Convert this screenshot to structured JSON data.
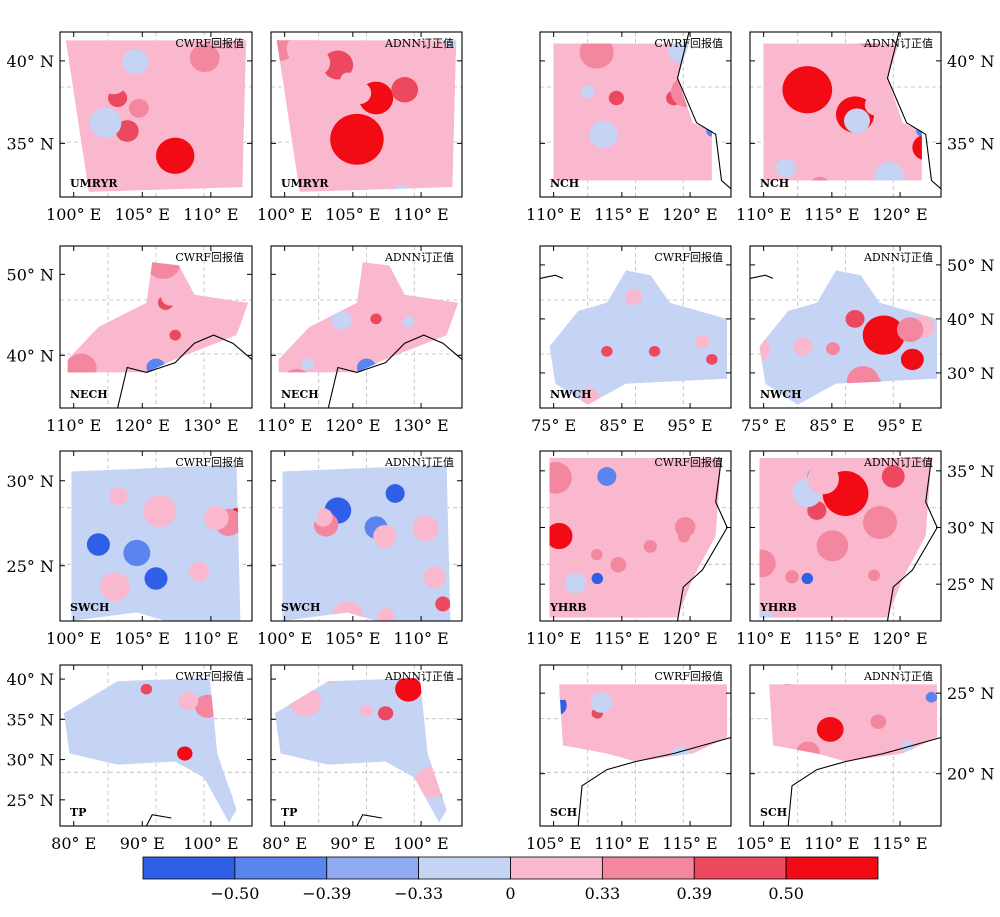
{
  "chart_data": {
    "type": "heatmap",
    "panel_titles": {
      "cwrf": "CWRF回报值",
      "adnn": "ADNN订正值"
    },
    "regions": [
      {
        "name": "UMRYR",
        "lon_ticks": [
          "100° E",
          "105° E",
          "110° E"
        ],
        "lat_ticks": [
          "40° N",
          "35° N"
        ],
        "lat_side": "left"
      },
      {
        "name": "NCH",
        "lon_ticks": [
          "110° E",
          "115° E",
          "120° E"
        ],
        "lat_ticks": [
          "40° N",
          "35° N"
        ],
        "lat_side": "right"
      },
      {
        "name": "NECH",
        "lon_ticks": [
          "110° E",
          "120° E",
          "130° E"
        ],
        "lat_ticks": [
          "50° N",
          "40° N"
        ],
        "lat_side": "left"
      },
      {
        "name": "NWCH",
        "lon_ticks": [
          "75° E",
          "85° E",
          "95° E"
        ],
        "lat_ticks": [
          "50° N",
          "40° N",
          "30° N"
        ],
        "lat_side": "right"
      },
      {
        "name": "SWCH",
        "lon_ticks": [
          "100° E",
          "105° E",
          "110° E"
        ],
        "lat_ticks": [
          "30° N",
          "25° N"
        ],
        "lat_side": "left"
      },
      {
        "name": "YHRB",
        "lon_ticks": [
          "110° E",
          "115° E",
          "120° E"
        ],
        "lat_ticks": [
          "35° N",
          "30° N",
          "25° N"
        ],
        "lat_side": "right"
      },
      {
        "name": "TP",
        "lon_ticks": [
          "80° E",
          "90° E",
          "100° E"
        ],
        "lat_ticks": [
          "40° N",
          "35° N",
          "30° N",
          "25° N"
        ],
        "lat_side": "left"
      },
      {
        "name": "SCH",
        "lon_ticks": [
          "105° E",
          "110° E",
          "115° E"
        ],
        "lat_ticks": [
          "25° N",
          "20° N"
        ],
        "lat_side": "right"
      }
    ],
    "colorbar": {
      "colors": [
        "#2f5fe6",
        "#5a84ee",
        "#8eaaf0",
        "#c5d3f5",
        "#f9b8cd",
        "#f3879f",
        "#ec4860",
        "#f20a14"
      ],
      "tick_labels": [
        "−0.50",
        "−0.39",
        "−0.33",
        "0",
        "0.33",
        "0.39",
        "0.50"
      ]
    }
  }
}
